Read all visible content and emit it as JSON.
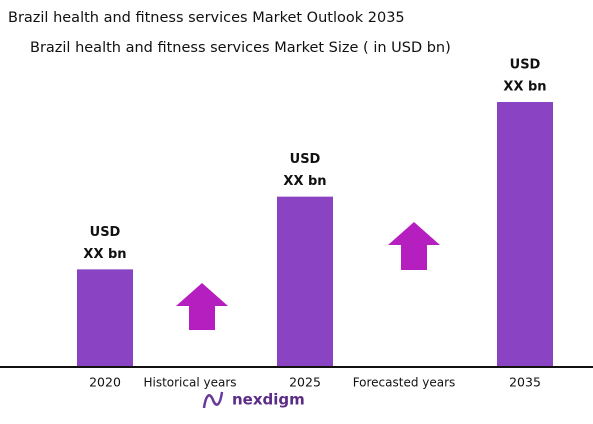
{
  "chart_data": {
    "type": "bar",
    "title": "Brazil health and fitness services Market Outlook 2035",
    "subtitle": "Brazil health and fitness services Market Size  ( in USD bn)",
    "categories": [
      "2020",
      "2025",
      "2035"
    ],
    "values": [
      97,
      170,
      265
    ],
    "value_labels": [
      [
        "USD",
        "XX bn"
      ],
      [
        "USD",
        "XX bn"
      ],
      [
        "USD",
        "XX bn"
      ]
    ],
    "color": "#8a43c2",
    "annotations": [
      "Historical years",
      "Forecasted years"
    ],
    "logo": "nexdigm"
  }
}
